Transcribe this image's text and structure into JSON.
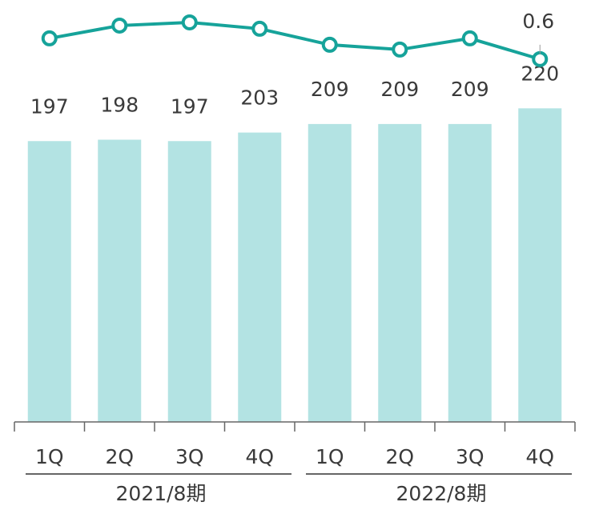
{
  "chart_data": {
    "type": "bar",
    "categories": [
      "1Q",
      "2Q",
      "3Q",
      "4Q",
      "1Q",
      "2Q",
      "3Q",
      "4Q"
    ],
    "groups": [
      {
        "label": "2021/8期",
        "span": 4
      },
      {
        "label": "2022/8期",
        "span": 4
      }
    ],
    "series": [
      {
        "type": "bar",
        "color": "#b3e3e3",
        "values": [
          197,
          198,
          197,
          203,
          209,
          209,
          209,
          220
        ]
      },
      {
        "type": "line",
        "axis": "y2",
        "color": "#16a39a",
        "values": [
          0.73,
          0.81,
          0.83,
          0.79,
          0.69,
          0.66,
          0.73,
          0.6
        ],
        "value_labels": [
          null,
          null,
          null,
          null,
          null,
          null,
          null,
          "0.6"
        ]
      }
    ],
    "ylim": [
      0,
      296
    ],
    "y2lim": [
      -1.67,
      0.97
    ]
  }
}
